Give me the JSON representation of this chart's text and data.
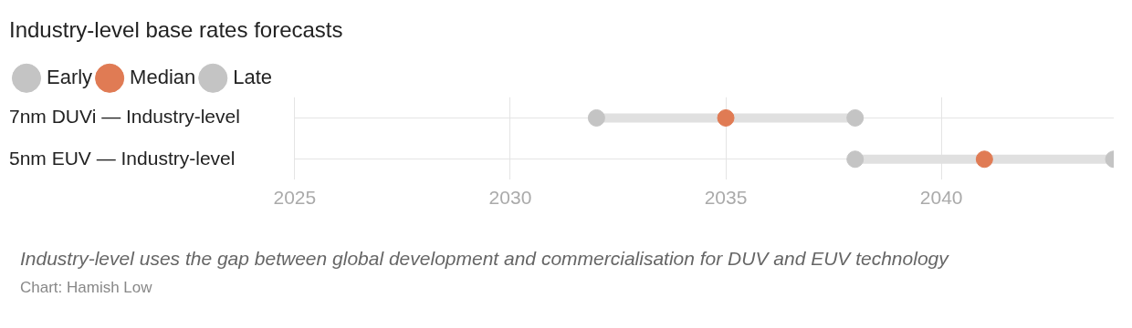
{
  "chart_data": {
    "type": "scatter",
    "title": "Industry-level base rates forecasts",
    "orientation": "horizontal",
    "categories": [
      "7nm DUVi — Industry-level",
      "5nm EUV — Industry-level"
    ],
    "series": [
      {
        "name": "Early",
        "color": "#c4c4c4",
        "values": [
          2032,
          2038
        ]
      },
      {
        "name": "Median",
        "color": "#e07b54",
        "values": [
          2035,
          2041
        ]
      },
      {
        "name": "Late",
        "color": "#c4c4c4",
        "values": [
          2038,
          2044
        ]
      }
    ],
    "xlim": [
      2025,
      2044
    ],
    "xticks": [
      2025,
      2030,
      2035,
      2040
    ],
    "grid": true,
    "legend": "top left",
    "marker": "circle",
    "annotations": [
      "Industry-level uses the gap between global development and commercialisation for DUV and EUV technology",
      "Chart: Hamish Low"
    ]
  }
}
